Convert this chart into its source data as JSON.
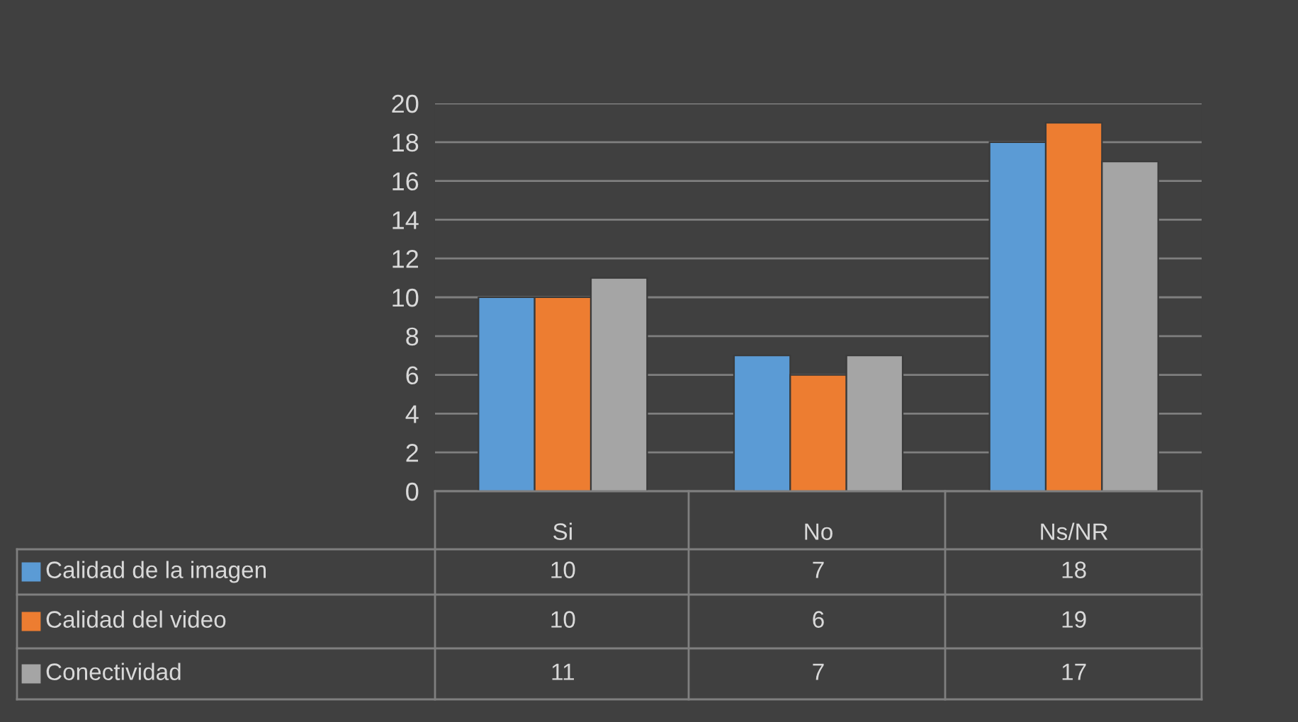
{
  "chart_data": {
    "type": "bar",
    "categories": [
      "Si",
      "No",
      "Ns/NR"
    ],
    "series": [
      {
        "name": "Calidad de la imagen",
        "color": "#5b9bd5",
        "values": [
          10,
          7,
          18
        ]
      },
      {
        "name": "Calidad del video",
        "color": "#ed7d31",
        "values": [
          10,
          6,
          19
        ]
      },
      {
        "name": "Conectividad",
        "color": "#a5a5a5",
        "values": [
          11,
          7,
          17
        ]
      }
    ],
    "ylim": [
      0,
      20
    ],
    "yticks": [
      0,
      2,
      4,
      6,
      8,
      10,
      12,
      14,
      16,
      18,
      20
    ],
    "grid": "y",
    "legend": "bottom",
    "data_labels": true
  }
}
